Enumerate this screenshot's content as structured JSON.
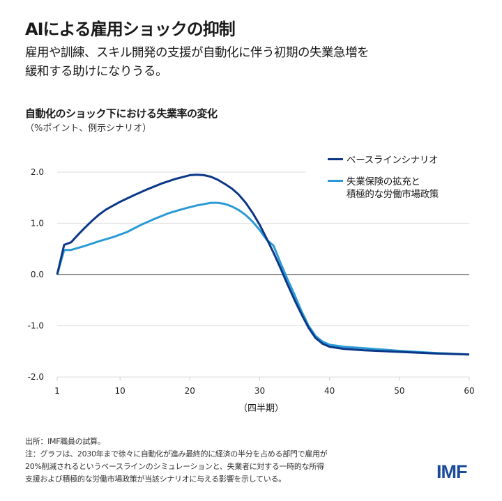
{
  "header": {
    "title": "AIによる雇用ショックの抑制",
    "subtitle_lines": [
      "雇用や訓練、スキル開発の支援が自動化に伴う初期の失業急増を",
      "緩和する助けになりうる。"
    ]
  },
  "footer": {
    "source": "出所：IMF職員の試算。",
    "note_lines": [
      "注：グラフは、2030年まで徐々に自動化が進み最終的に経済の半分を占める部門で雇用が",
      "20%削減されるというベースラインのシミュレーションと、失業者に対する一時的な所得",
      "支援および積極的な労働市場政策が当該シナリオに与える影響を示している。"
    ],
    "logo": "IMF"
  },
  "chart_data": {
    "type": "line",
    "title": "自動化のショック下における失業率の変化",
    "subtitle": "（%ポイント、例示シナリオ）",
    "xlabel": "（四半期）",
    "xlim": [
      1,
      60
    ],
    "ylim": [
      -2,
      2
    ],
    "xticks": [
      1,
      10,
      20,
      30,
      40,
      50,
      60
    ],
    "yticks": [
      {
        "v": 2,
        "label": "2.0"
      },
      {
        "v": 1,
        "label": "1.0"
      },
      {
        "v": 0,
        "label": "0.0"
      },
      {
        "v": -1,
        "label": "-1.0"
      },
      {
        "v": -2,
        "label": "-2.0"
      }
    ],
    "grid": true,
    "legend": "top-right",
    "series": [
      {
        "name": "ベースラインシナリオ",
        "color": "#0b3787",
        "points": [
          [
            1,
            0
          ],
          [
            2,
            0.58
          ],
          [
            3,
            0.63
          ],
          [
            4,
            0.78
          ],
          [
            5,
            0.92
          ],
          [
            6,
            1.05
          ],
          [
            7,
            1.17
          ],
          [
            8,
            1.27
          ],
          [
            10,
            1.42
          ],
          [
            12,
            1.55
          ],
          [
            14,
            1.67
          ],
          [
            16,
            1.78
          ],
          [
            18,
            1.87
          ],
          [
            20,
            1.94
          ],
          [
            21,
            1.95
          ],
          [
            22,
            1.94
          ],
          [
            23,
            1.91
          ],
          [
            24,
            1.85
          ],
          [
            25,
            1.77
          ],
          [
            26,
            1.68
          ],
          [
            27,
            1.56
          ],
          [
            28,
            1.4
          ],
          [
            29,
            1.2
          ],
          [
            30,
            0.97
          ],
          [
            31,
            0.7
          ],
          [
            32,
            0.42
          ],
          [
            33,
            0.12
          ],
          [
            34,
            -0.2
          ],
          [
            35,
            -0.5
          ],
          [
            36,
            -0.78
          ],
          [
            37,
            -1.04
          ],
          [
            38,
            -1.24
          ],
          [
            39,
            -1.35
          ],
          [
            40,
            -1.41
          ],
          [
            42,
            -1.45
          ],
          [
            45,
            -1.48
          ],
          [
            50,
            -1.51
          ],
          [
            55,
            -1.54
          ],
          [
            60,
            -1.56
          ]
        ]
      },
      {
        "name_lines": [
          "失業保険の拡充と",
          "積極的な労働市場政策"
        ],
        "name": "失業保険の拡充と積極的な労働市場政策",
        "color": "#2a9ad6",
        "points": [
          [
            1,
            0
          ],
          [
            2,
            0.48
          ],
          [
            3,
            0.48
          ],
          [
            5,
            0.56
          ],
          [
            7,
            0.65
          ],
          [
            9,
            0.73
          ],
          [
            11,
            0.83
          ],
          [
            13,
            0.97
          ],
          [
            15,
            1.09
          ],
          [
            17,
            1.2
          ],
          [
            19,
            1.28
          ],
          [
            21,
            1.35
          ],
          [
            23,
            1.4
          ],
          [
            24,
            1.4
          ],
          [
            25,
            1.38
          ],
          [
            26,
            1.33
          ],
          [
            27,
            1.26
          ],
          [
            28,
            1.16
          ],
          [
            29,
            1.03
          ],
          [
            30,
            0.87
          ],
          [
            31,
            0.68
          ],
          [
            32,
            0.56
          ],
          [
            33,
            0.22
          ],
          [
            34,
            -0.1
          ],
          [
            35,
            -0.4
          ],
          [
            36,
            -0.72
          ],
          [
            37,
            -1.0
          ],
          [
            38,
            -1.2
          ],
          [
            39,
            -1.31
          ],
          [
            40,
            -1.37
          ],
          [
            42,
            -1.41
          ],
          [
            45,
            -1.44
          ],
          [
            50,
            -1.49
          ],
          [
            55,
            -1.53
          ],
          [
            60,
            -1.56
          ]
        ]
      }
    ]
  }
}
